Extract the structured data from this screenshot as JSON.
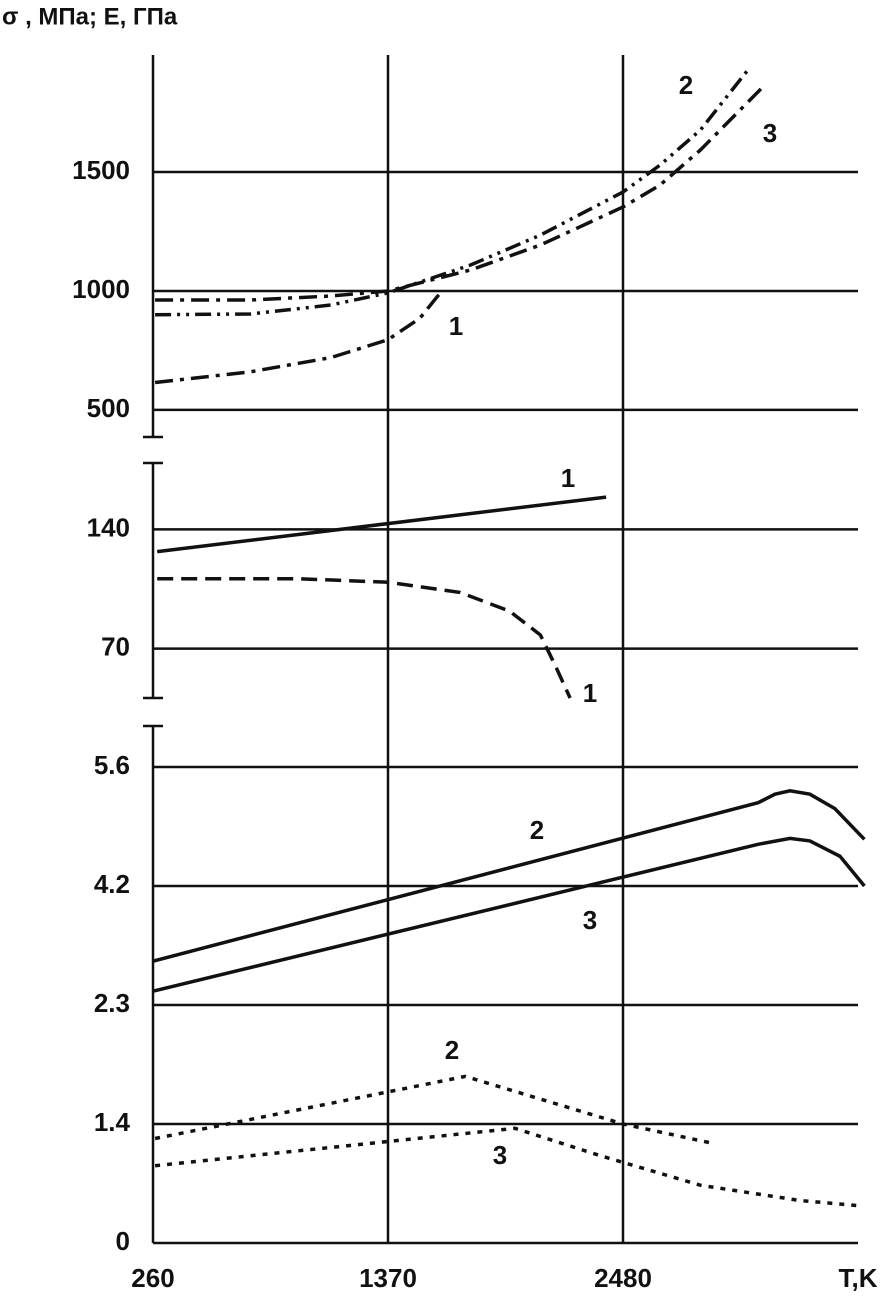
{
  "chart_data": {
    "type": "line",
    "ylabel": "σ , МПа; Е, ГПа",
    "xlabel": "T,K",
    "xlim": [
      260,
      3590
    ],
    "xticks": [
      260,
      1370,
      2480
    ],
    "grid": true,
    "panels": [
      {
        "ylim": [
          386,
          1992
        ],
        "yticks": [
          500,
          1000,
          1500
        ],
        "series": [
          {
            "name": "1",
            "color": "#111111",
            "style": "dashdot",
            "x": [
              270,
              720,
              1100,
              1370,
              1520,
              1620
            ],
            "values": [
              615,
              660,
              720,
              795,
              885,
              995
            ]
          },
          {
            "name": "2",
            "color": "#111111",
            "style": "dashdotdot",
            "x": [
              270,
              720,
              1100,
              1370,
              1760,
              2090,
              2480,
              2655,
              2845,
              3070
            ],
            "values": [
              900,
              903,
              941,
              992,
              1109,
              1235,
              1416,
              1529,
              1676,
              1929
            ]
          },
          {
            "name": "3",
            "color": "#111111",
            "style": "dashdot",
            "x": [
              270,
              720,
              1100,
              1370,
              1760,
              2090,
              2480,
              2655,
              2845,
              3150
            ],
            "values": [
              962,
              962,
              979,
              1000,
              1088,
              1193,
              1353,
              1445,
              1592,
              1866
            ]
          }
        ]
      },
      {
        "ylim": [
          41,
          179
        ],
        "yticks": [
          70,
          140
        ],
        "series": [
          {
            "name": "1",
            "color": "#111111",
            "style": "solid",
            "x": [
              280,
              2400
            ],
            "values": [
              127,
              159
            ]
          },
          {
            "name": "1",
            "color": "#111111",
            "style": "dashed",
            "x": [
              280,
              955,
              1370,
              1710,
              1945,
              2090,
              2160,
              2230
            ],
            "values": [
              111,
              111,
              109,
              103,
              92,
              78,
              60,
              41
            ]
          }
        ]
      },
      {
        "ylim": [
          0,
          6.07
        ],
        "yticks": [
          0,
          1.4,
          2.3,
          4.2,
          5.6
        ],
        "scale": "piecewise",
        "series": [
          {
            "name": "2",
            "color": "#111111",
            "style": "solid",
            "x": [
              260,
              3118,
              3198,
              3269,
              3363,
              3481,
              3620
            ],
            "values": [
              3.0,
              5.18,
              5.28,
              5.32,
              5.28,
              5.11,
              4.75
            ]
          },
          {
            "name": "3",
            "color": "#111111",
            "style": "solid",
            "x": [
              260,
              3118,
              3269,
              3363,
              3505,
              3620
            ],
            "values": [
              2.52,
              4.69,
              4.76,
              4.73,
              4.55,
              4.2
            ]
          },
          {
            "name": "2",
            "color": "#111111",
            "style": "dotted",
            "x": [
              270,
              1735,
              2480,
              2890
            ],
            "values": [
              1.23,
              1.76,
              1.4,
              1.18
            ]
          },
          {
            "name": "3",
            "color": "#111111",
            "style": "dotted",
            "x": [
              270,
              1970,
              2370,
              2845,
              3315,
              3590
            ],
            "values": [
              0.91,
              1.35,
              1.03,
              0.68,
              0.5,
              0.44
            ]
          }
        ]
      }
    ]
  }
}
